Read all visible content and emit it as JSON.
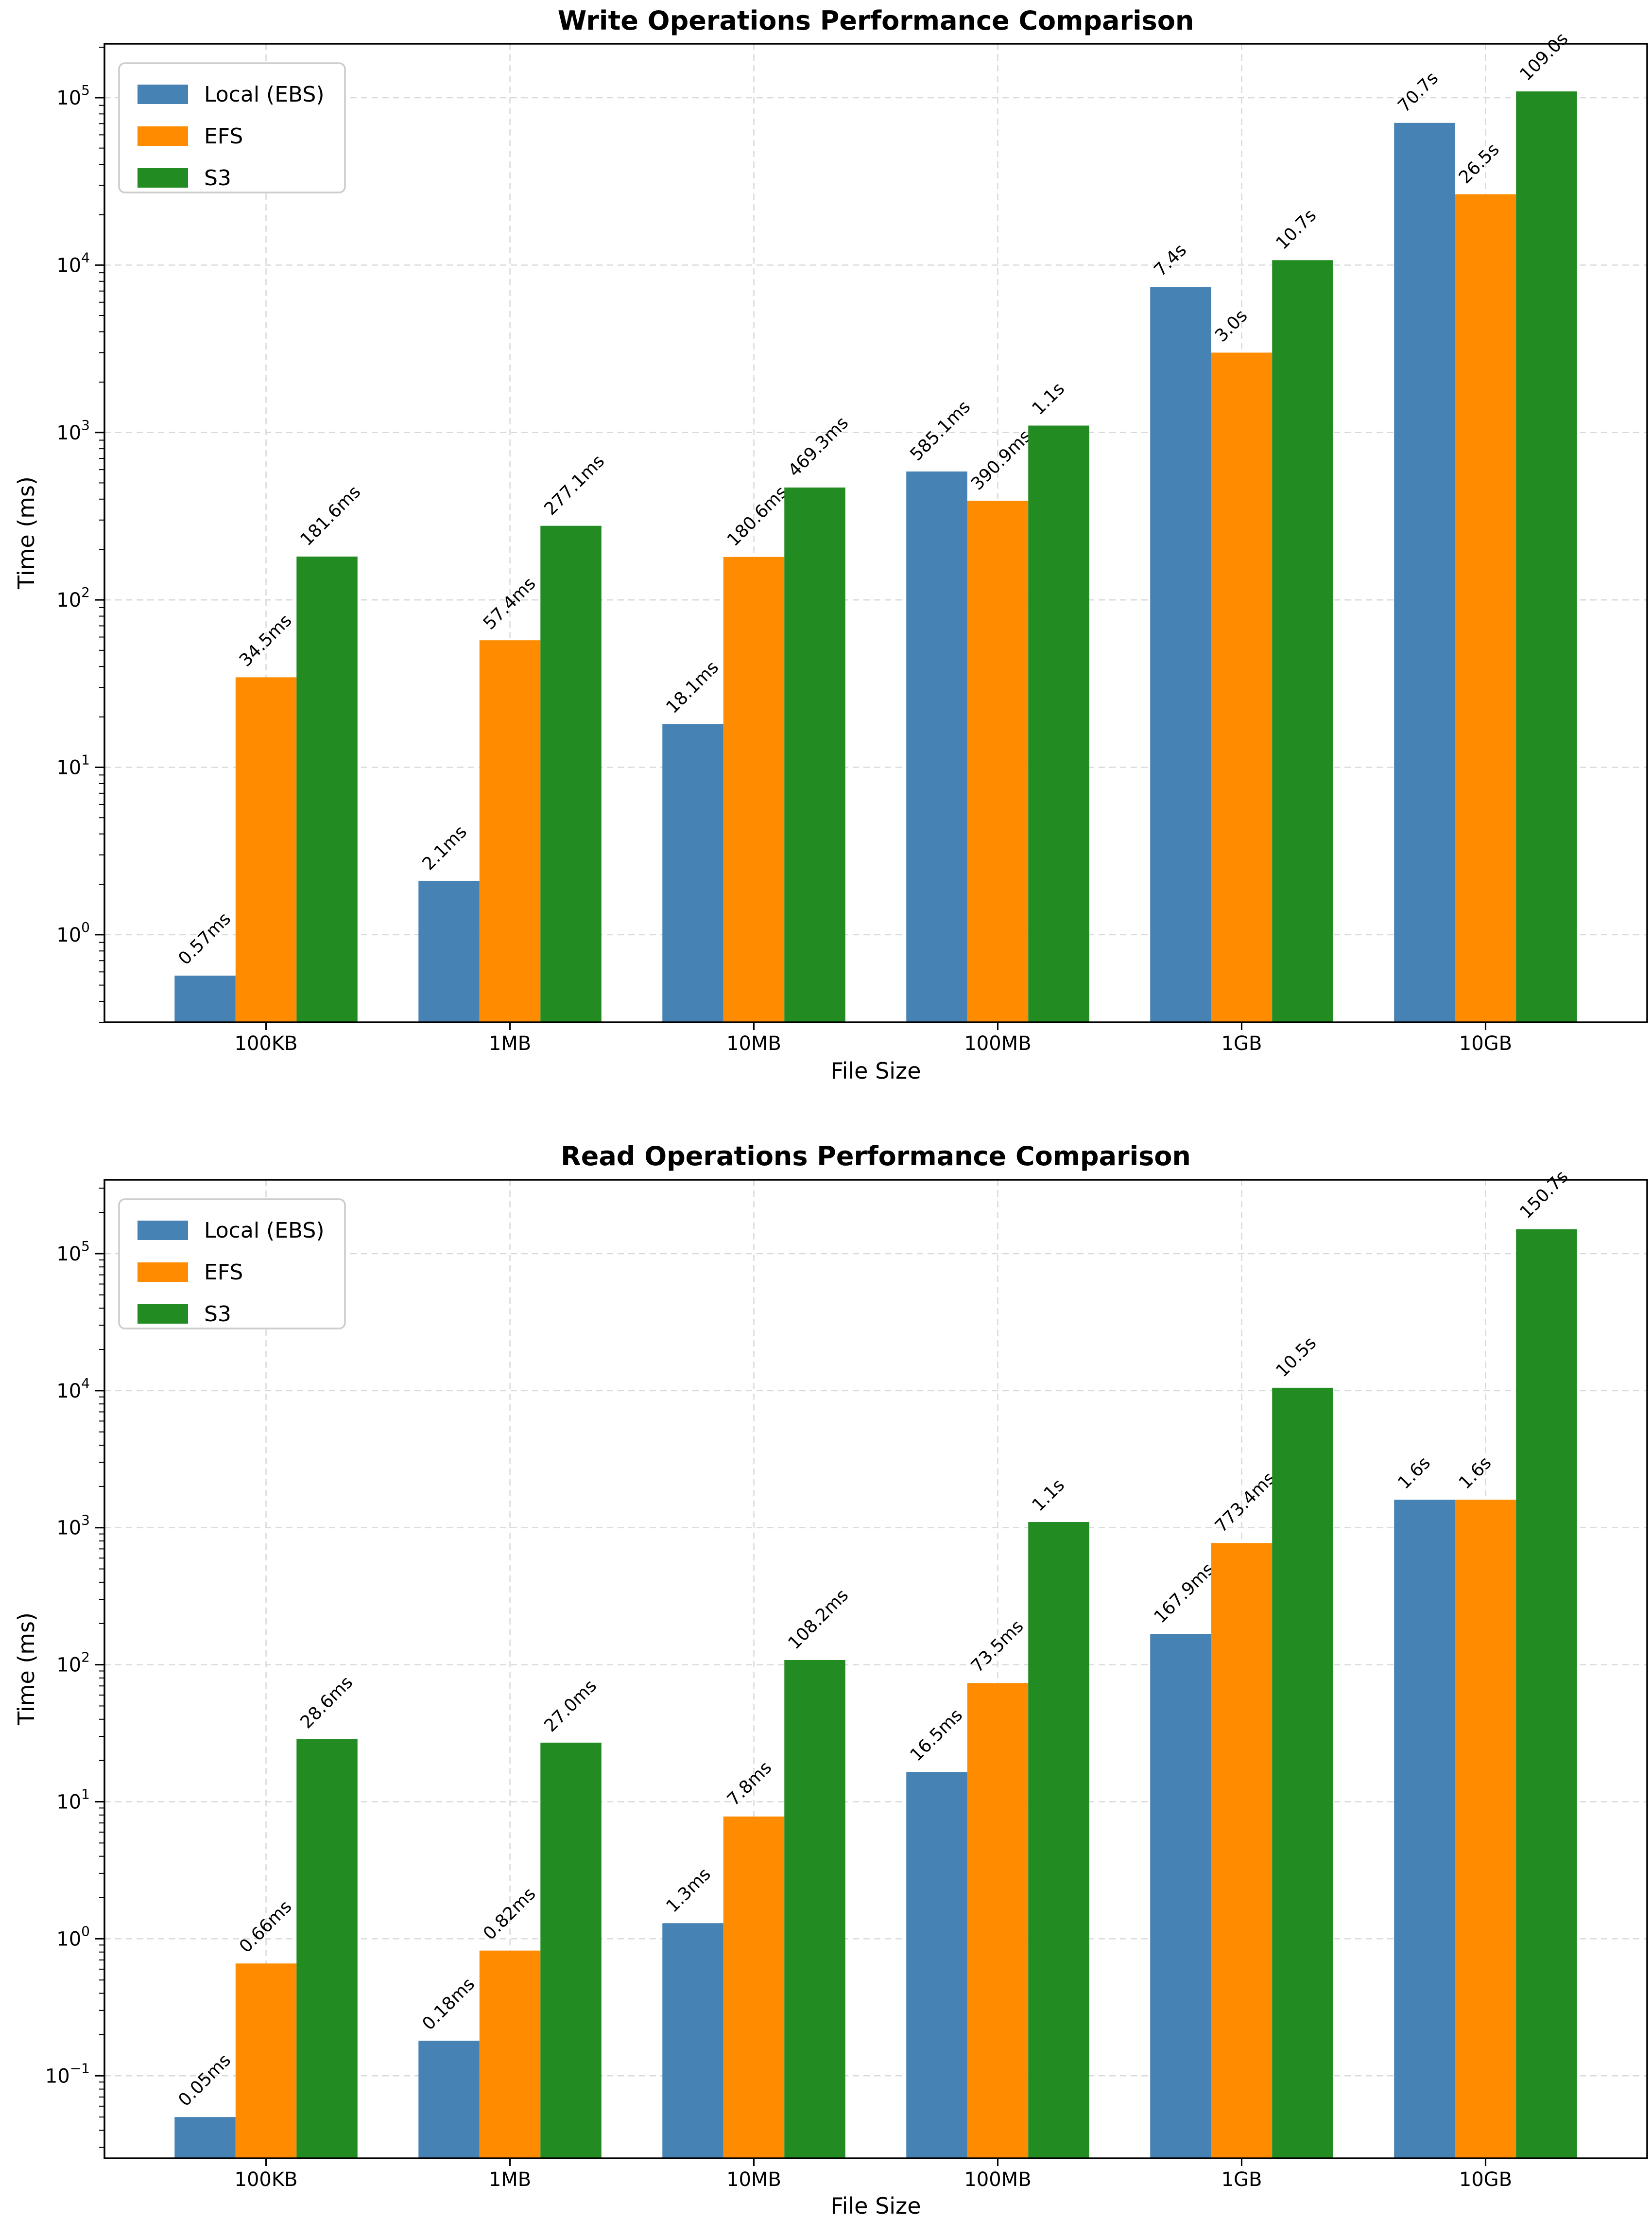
{
  "colors": {
    "local": "#4682b4",
    "efs": "#ff8c00",
    "s3": "#228b22",
    "grid": "#d9d9d9",
    "spine": "#000000",
    "tick": "#000000",
    "text": "#000000",
    "legend_border": "#cccccc",
    "legend_fill": "#ffffff"
  },
  "chart_data": [
    {
      "type": "bar",
      "title": "Write Operations Performance Comparison",
      "xlabel": "File Size",
      "ylabel": "Time (ms)",
      "yscale": "log",
      "ylim": [
        0.3,
        210000
      ],
      "grid": true,
      "legend_position": "upper left",
      "categories": [
        "100KB",
        "1MB",
        "10MB",
        "100MB",
        "1GB",
        "10GB"
      ],
      "y_ticks": [
        "10^0",
        "10^1",
        "10^2",
        "10^3",
        "10^4",
        "10^5"
      ],
      "series": [
        {
          "name": "Local (EBS)",
          "color": "#4682b4",
          "values_ms": [
            0.57,
            2.1,
            18.1,
            585.1,
            7400,
            70700
          ],
          "labels": [
            "0.57ms",
            "2.1ms",
            "18.1ms",
            "585.1ms",
            "7.4s",
            "70.7s"
          ]
        },
        {
          "name": "EFS",
          "color": "#ff8c00",
          "values_ms": [
            34.5,
            57.4,
            180.6,
            390.9,
            3000,
            26500
          ],
          "labels": [
            "34.5ms",
            "57.4ms",
            "180.6ms",
            "390.9ms",
            "3.0s",
            "26.5s"
          ]
        },
        {
          "name": "S3",
          "color": "#228b22",
          "values_ms": [
            181.6,
            277.1,
            469.3,
            1100,
            10700,
            109000
          ],
          "labels": [
            "181.6ms",
            "277.1ms",
            "469.3ms",
            "1.1s",
            "10.7s",
            "109.0s"
          ]
        }
      ]
    },
    {
      "type": "bar",
      "title": "Read Operations Performance Comparison",
      "xlabel": "File Size",
      "ylabel": "Time (ms)",
      "yscale": "log",
      "ylim": [
        0.025,
        346000
      ],
      "grid": true,
      "legend_position": "upper left",
      "categories": [
        "100KB",
        "1MB",
        "10MB",
        "100MB",
        "1GB",
        "10GB"
      ],
      "y_ticks": [
        "10^−1",
        "10^0",
        "10^1",
        "10^2",
        "10^3",
        "10^4",
        "10^5"
      ],
      "series": [
        {
          "name": "Local (EBS)",
          "color": "#4682b4",
          "values_ms": [
            0.05,
            0.18,
            1.3,
            16.5,
            167.9,
            1600
          ],
          "labels": [
            "0.05ms",
            "0.18ms",
            "1.3ms",
            "16.5ms",
            "167.9ms",
            "1.6s"
          ]
        },
        {
          "name": "EFS",
          "color": "#ff8c00",
          "values_ms": [
            0.66,
            0.82,
            7.8,
            73.5,
            773.4,
            1600
          ],
          "labels": [
            "0.66ms",
            "0.82ms",
            "7.8ms",
            "73.5ms",
            "773.4ms",
            "1.6s"
          ]
        },
        {
          "name": "S3",
          "color": "#228b22",
          "values_ms": [
            28.6,
            27.0,
            108.2,
            1100,
            10500,
            150700
          ],
          "labels": [
            "28.6ms",
            "27.0ms",
            "108.2ms",
            "1.1s",
            "10.5s",
            "150.7s"
          ]
        }
      ]
    }
  ]
}
